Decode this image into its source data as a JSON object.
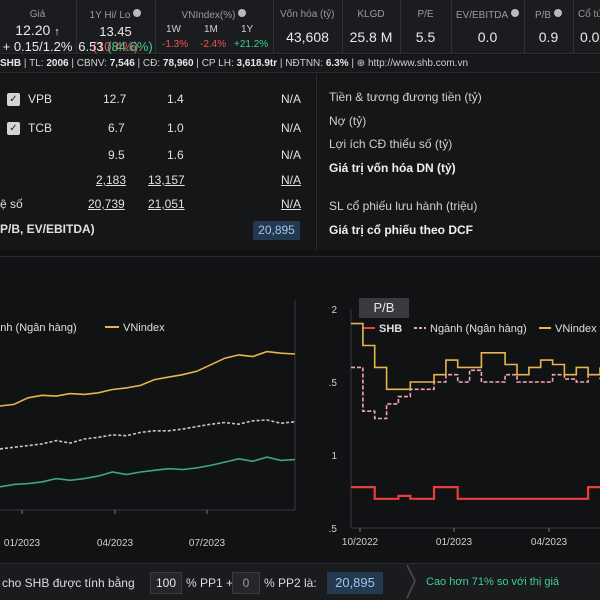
{
  "header": {
    "price_label": "Giá",
    "price": "12.20",
    "price_change": "+ 0.15/1.2%",
    "hi_lo_label": "1Y Hi/ Lo",
    "hi_lo_1": "13.45",
    "hi_lo_1_pct": "(10.4%)",
    "hi_lo_2": "6.53",
    "hi_lo_2_pct": "(84.6%)",
    "vnindex_label": "VNIndex(%)",
    "vn_tabs": [
      "1W",
      "1M",
      "1Y"
    ],
    "vn_vals": [
      "-1.3%",
      "-2.4%",
      "+21.2%"
    ],
    "cap_label": "Vốn hóa (tỷ)",
    "cap": "43,608",
    "klgd_label": "KLGD",
    "klgd": "25.8 M",
    "pe_label": "P/E",
    "pe": "5.5",
    "ev_label": "EV/EBITDA",
    "ev": "0.0",
    "pb_label": "P/B",
    "pb": "0.9",
    "cotuc_label": "Cổ tứ",
    "cotuc": "0.0"
  },
  "infoline": {
    "ticker": "SHB",
    "tl_label": "TL:",
    "tl": "2006",
    "cbnv_label": "CBNV:",
    "cbnv": "7,546",
    "cd_label": "CĐ:",
    "cd": "78,960",
    "cplh_label": "CP LH:",
    "cplh": "3,618.9tr",
    "ndtnn_label": "NĐTNN:",
    "ndtnn": "6.3%",
    "website": "http://www.shb.com.vn"
  },
  "compare": {
    "rows": [
      {
        "name": "VPB",
        "c1": "12.7",
        "c2": "1.4",
        "c3": "N/A"
      },
      {
        "name": "TCB",
        "c1": "6.7",
        "c2": "1.0",
        "c3": "N/A"
      },
      {
        "name": "",
        "c1": "9.5",
        "c2": "1.6",
        "c3": "N/A"
      },
      {
        "name": "",
        "c1": "2,183",
        "c2": "13,157",
        "c3": "N/A"
      },
      {
        "name": "ệ số",
        "c1": "20,739",
        "c2": "21,051",
        "c3": "N/A"
      }
    ],
    "footer_label": "P/B, EV/EBITDA)",
    "footer_value": "20,895"
  },
  "right_items": [
    {
      "label": "Tiền & tương đương tiền (tỷ)"
    },
    {
      "label": "Nợ (tỷ)"
    },
    {
      "label": "Lợi ích CĐ thiểu số (tỷ)"
    },
    {
      "label": "Giá trị vốn hóa DN (tỷ)"
    },
    {
      "label": "SL cổ phiếu lưu hành (triệu)"
    },
    {
      "label": "Giá trị cổ phiếu theo DCF"
    }
  ],
  "chart_data": [
    {
      "type": "line",
      "legend": [
        "gành (Ngân hàng)",
        "VNindex"
      ],
      "x_ticks": [
        "01/2023",
        "04/2023",
        "07/2023"
      ],
      "series": [
        {
          "name": "VNindex",
          "color": "#e5b64a",
          "values": [
            0.2,
            0.22,
            0.3,
            0.33,
            0.32,
            0.35,
            0.34,
            0.36,
            0.4,
            0.42,
            0.45,
            0.52,
            0.55,
            0.58,
            0.62,
            0.7,
            0.78,
            0.82,
            0.8,
            0.86,
            0.84,
            0.83
          ]
        },
        {
          "name": "gành (Ngân hàng)",
          "color": "#c8c8c8",
          "values": [
            -0.32,
            -0.3,
            -0.28,
            -0.26,
            -0.22,
            -0.25,
            -0.2,
            -0.18,
            -0.15,
            -0.16,
            -0.12,
            -0.1,
            -0.1,
            -0.08,
            -0.05,
            -0.02,
            0.0,
            -0.02,
            0.02,
            0.03,
            -0.01,
            0.01
          ]
        },
        {
          "name": "",
          "color": "#3ea87a",
          "values": [
            -0.78,
            -0.75,
            -0.74,
            -0.72,
            -0.68,
            -0.7,
            -0.68,
            -0.65,
            -0.6,
            -0.63,
            -0.6,
            -0.58,
            -0.56,
            -0.57,
            -0.55,
            -0.52,
            -0.48,
            -0.44,
            -0.47,
            -0.42,
            -0.46,
            -0.45
          ]
        }
      ]
    },
    {
      "type": "line",
      "title": "P/B",
      "legend": [
        "SHB",
        "Ngành (Ngân hàng)",
        "VNindex"
      ],
      "y_ticks": [
        "2",
        "1.5",
        "1",
        "0.5"
      ],
      "x_ticks": [
        "10/2022",
        "01/2023",
        "04/2023"
      ],
      "ylim": [
        0.5,
        2.0
      ],
      "series": [
        {
          "name": "SHB",
          "color": "#e83e3e",
          "values": [
            0.78,
            0.78,
            0.7,
            0.7,
            0.72,
            0.7,
            0.7,
            0.78,
            0.78,
            0.7,
            0.7,
            0.7,
            0.7,
            0.7,
            0.7,
            0.7,
            0.7,
            0.7,
            0.7,
            0.7,
            0.78,
            0.78
          ]
        },
        {
          "name": "Ngành (Ngân hàng)",
          "color": "#f2a6b4",
          "values": [
            1.6,
            1.3,
            1.25,
            1.35,
            1.4,
            1.45,
            1.45,
            1.5,
            1.55,
            1.5,
            1.58,
            1.5,
            1.5,
            1.55,
            1.5,
            1.5,
            1.5,
            1.55,
            1.52,
            1.5,
            1.55,
            1.52
          ]
        },
        {
          "name": "VNindex",
          "color": "#e5b64a",
          "values": [
            1.9,
            1.75,
            1.6,
            1.45,
            1.45,
            1.5,
            1.5,
            1.55,
            1.65,
            1.6,
            1.6,
            1.7,
            1.7,
            1.62,
            1.55,
            1.6,
            1.65,
            1.62,
            1.55,
            1.6,
            1.55,
            1.6
          ]
        }
      ]
    }
  ],
  "bottom": {
    "text1": "cho SHB được tính bằng",
    "pp1_val": "100",
    "text2": "% PP1 +",
    "pp2_val": "0",
    "text3": "% PP2 là:",
    "result": "20,895",
    "note": "Cao hơn 71% so với thị giá"
  }
}
